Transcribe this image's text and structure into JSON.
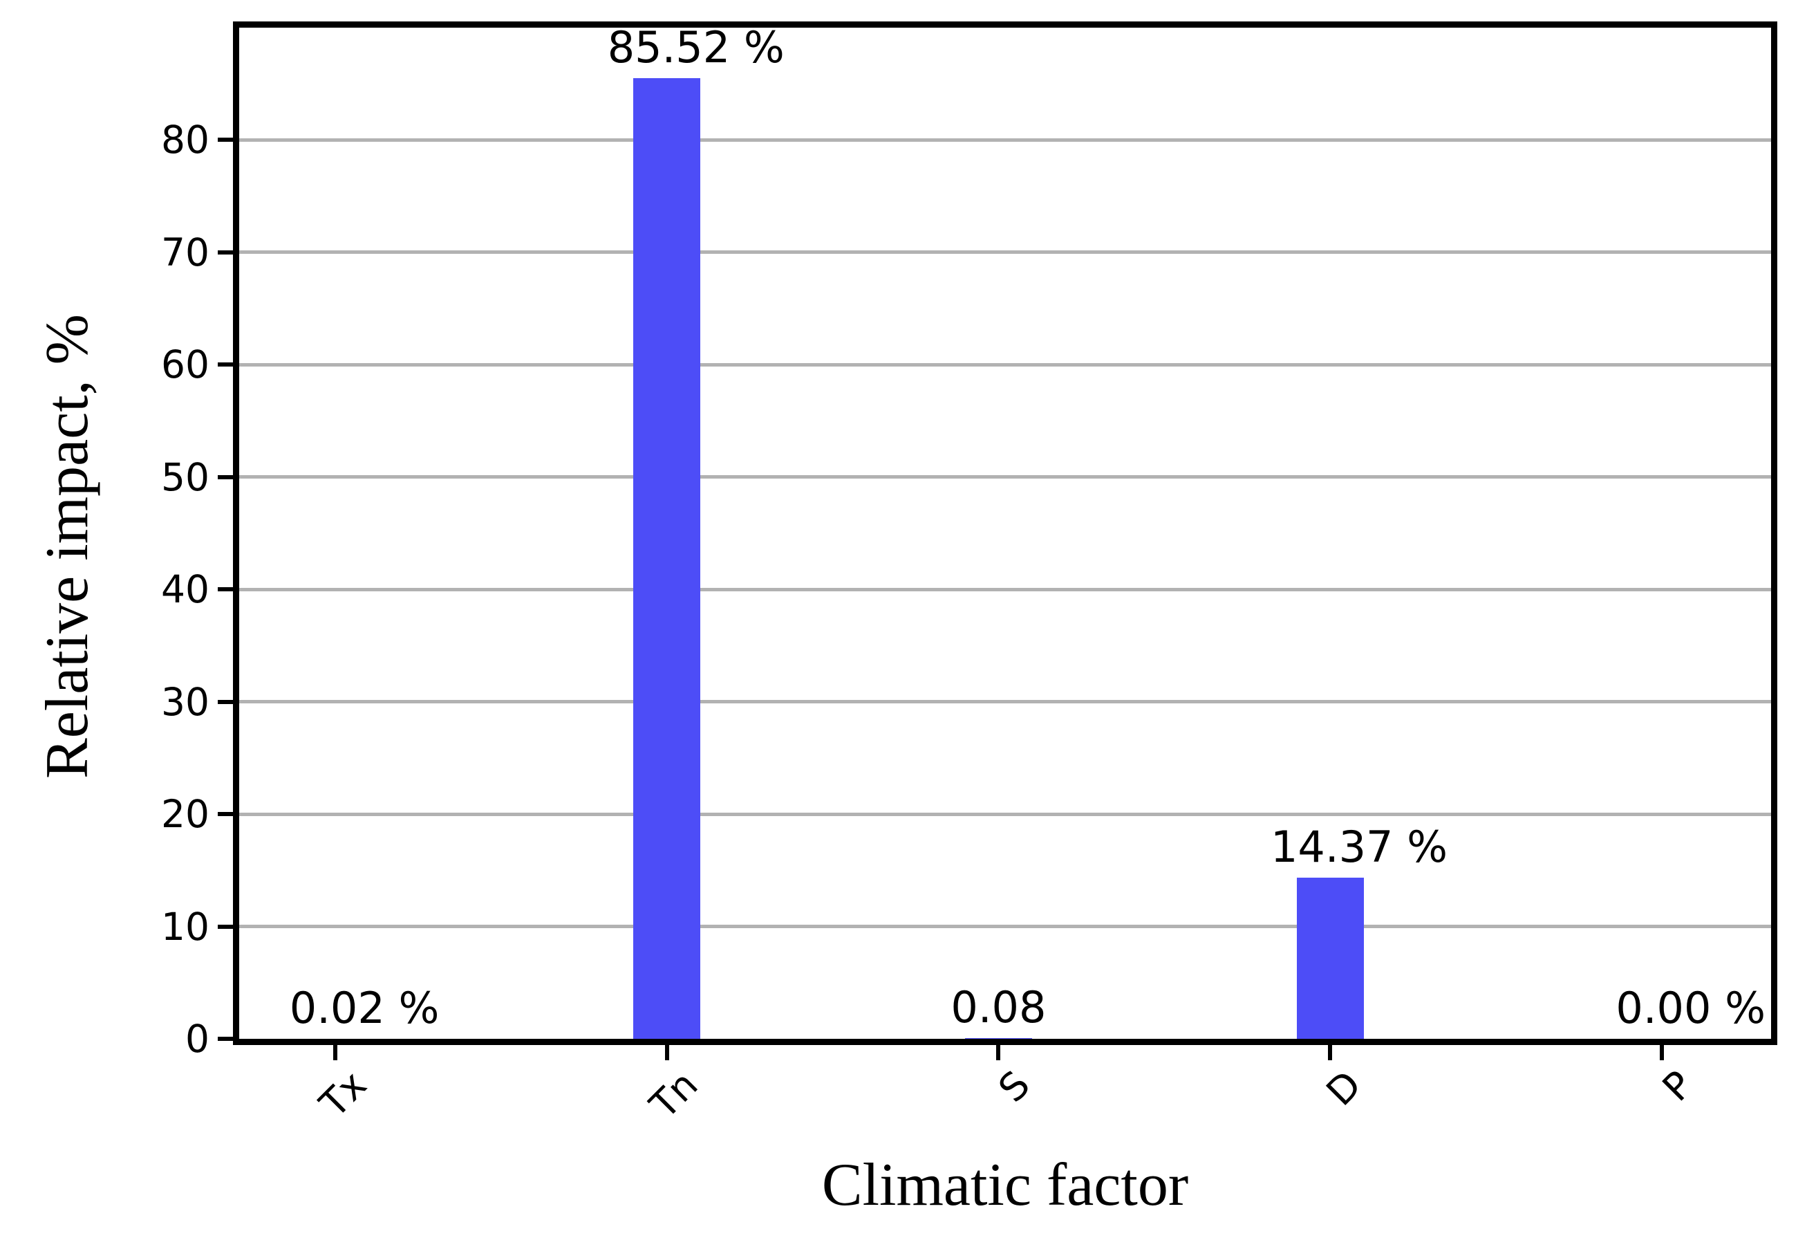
{
  "figure": {
    "background": "#ffffff"
  },
  "chart_data": {
    "type": "bar",
    "title": "",
    "xlabel": "Climatic factor",
    "ylabel": "Relative impact, %",
    "categories": [
      "Tx",
      "Tn",
      "S",
      "D",
      "P"
    ],
    "values": [
      0.02,
      85.52,
      0.08,
      14.37,
      0.0
    ],
    "bar_labels": [
      "0.02 %",
      "85.52 %",
      "0.08",
      "14.37 %",
      "0.00 %"
    ],
    "yticks": [
      0,
      10,
      20,
      30,
      40,
      50,
      60,
      70,
      80
    ],
    "ylim": [
      0,
      90
    ],
    "xlim": [
      -0.29,
      4.33
    ],
    "grid": "horizontal",
    "legend": "none",
    "colors": {
      "bar": "#4D4DF7",
      "grid": "#b2b2b2",
      "axis": "#000000",
      "text": "#000000"
    }
  }
}
